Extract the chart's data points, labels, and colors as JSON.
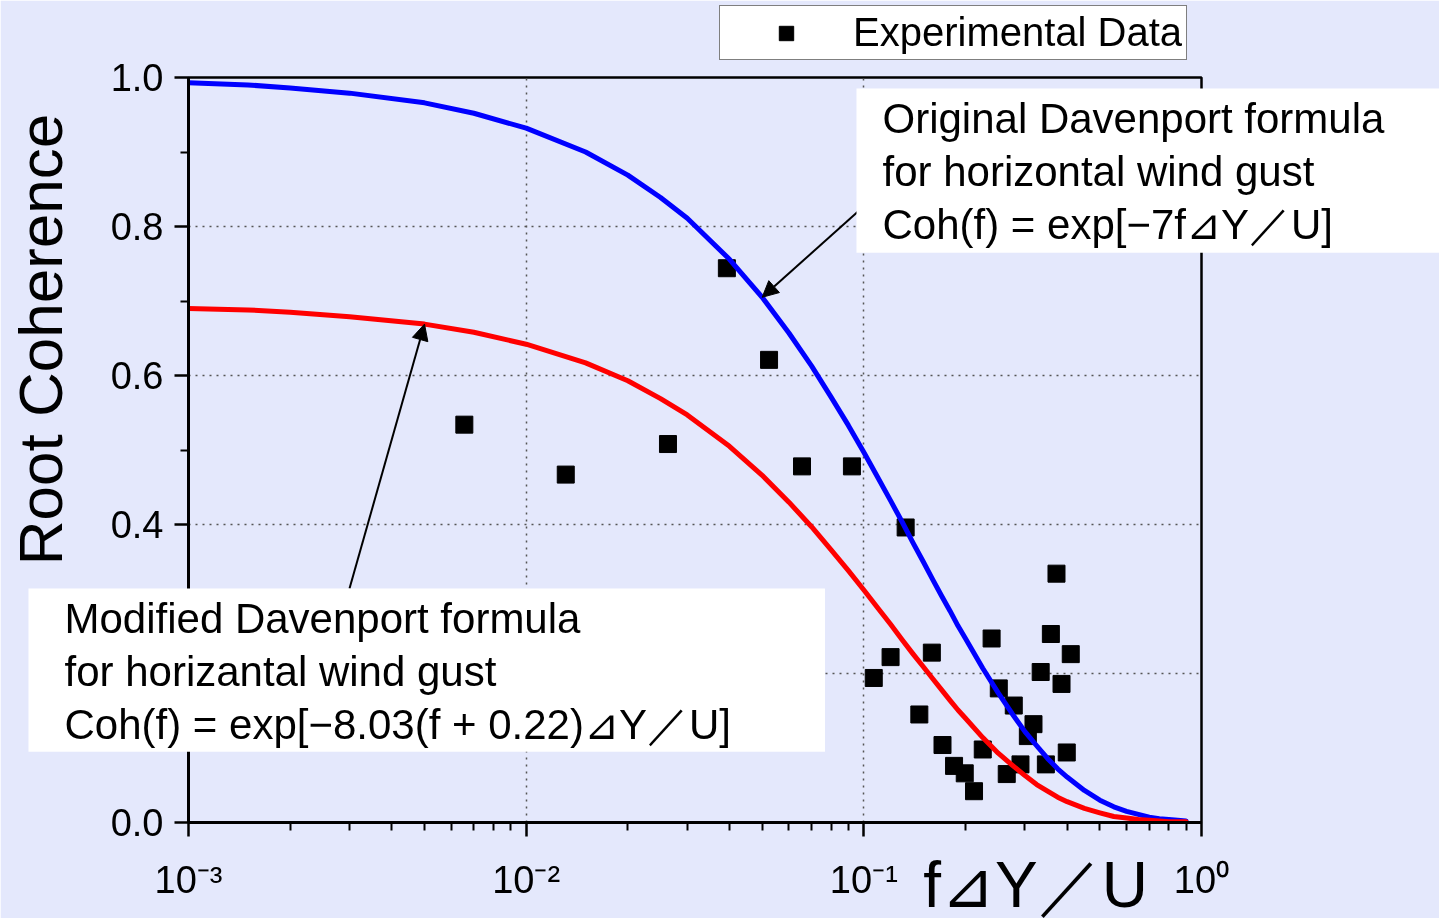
{
  "chart_data": {
    "type": "scatter",
    "xlabel": "f⊿Y／U",
    "ylabel": "Root Coherence",
    "log": "x",
    "grid": true,
    "legend": "top right",
    "xlim": [
      0.001,
      1
    ],
    "ylim": [
      0,
      1
    ],
    "xticks": [
      {
        "value": 0.001,
        "label": "10⁻³"
      },
      {
        "value": 0.01,
        "label": "10⁻²"
      },
      {
        "value": 0.1,
        "label": "10⁻¹"
      },
      {
        "value": 1,
        "label": "10⁰"
      }
    ],
    "yticks": [
      {
        "value": 0,
        "label": "0.0"
      },
      {
        "value": 0.2,
        "label": null
      },
      0.4,
      0.6,
      0.8,
      {
        "value": 1,
        "label": "1.0"
      }
    ],
    "series": [
      {
        "name": "Experimental Data",
        "marker": "square",
        "color": "#000000",
        "x": [
          0.00656,
          0.0131,
          0.0263,
          0.0393,
          0.0524,
          0.0656,
          0.0922,
          0.107,
          0.12,
          0.133,
          0.146,
          0.159,
          0.171,
          0.185,
          0.199,
          0.212,
          0.225,
          0.239,
          0.251,
          0.265,
          0.278,
          0.291,
          0.306,
          0.318,
          0.334,
          0.346,
          0.358,
          0.372,
          0.385,
          0.399,
          0.41
        ],
        "values": [
          0.534,
          0.467,
          0.508,
          0.744,
          0.621,
          0.478,
          0.478,
          0.194,
          0.222,
          0.396,
          0.145,
          0.228,
          0.104,
          0.076,
          0.066,
          0.042,
          0.098,
          0.247,
          0.18,
          0.065,
          0.157,
          0.078,
          0.116,
          0.132,
          0.202,
          0.078,
          0.253,
          0.334,
          0.186,
          0.094,
          0.226
        ]
      },
      {
        "type": "line",
        "line_style": "solid",
        "color": "#0000ff",
        "x": [
          0.001,
          0.0015,
          0.002,
          0.003,
          0.005,
          0.007,
          0.01,
          0.015,
          0.02,
          0.025,
          0.03,
          0.04,
          0.05,
          0.06,
          0.07,
          0.08,
          0.09,
          0.1,
          0.11,
          0.12,
          0.13,
          0.14,
          0.15,
          0.16,
          0.17,
          0.18,
          0.19,
          0.2,
          0.225,
          0.25,
          0.275,
          0.3,
          0.325,
          0.35,
          0.375,
          0.4,
          0.45,
          0.5,
          0.55,
          0.6,
          0.65,
          0.7,
          0.75,
          0.8,
          0.85,
          0.9
        ],
        "values": [
          0.993,
          0.99,
          0.986,
          0.979,
          0.966,
          0.952,
          0.932,
          0.9,
          0.869,
          0.839,
          0.811,
          0.756,
          0.705,
          0.657,
          0.613,
          0.571,
          0.533,
          0.497,
          0.463,
          0.432,
          0.403,
          0.375,
          0.35,
          0.326,
          0.304,
          0.284,
          0.264,
          0.247,
          0.207,
          0.174,
          0.146,
          0.122,
          0.103,
          0.086,
          0.072,
          0.061,
          0.043,
          0.03,
          0.021,
          0.015,
          0.011,
          0.007,
          0.005,
          0.004,
          0.003,
          0.002
        ]
      },
      {
        "type": "line",
        "line_style": "solid",
        "color": "#ff0000",
        "x": [
          0.001,
          0.0015,
          0.002,
          0.003,
          0.005,
          0.007,
          0.01,
          0.015,
          0.02,
          0.025,
          0.03,
          0.04,
          0.05,
          0.06,
          0.07,
          0.08,
          0.09,
          0.1,
          0.11,
          0.12,
          0.13,
          0.14,
          0.15,
          0.16,
          0.17,
          0.18,
          0.19,
          0.2,
          0.225,
          0.25,
          0.275,
          0.3,
          0.325,
          0.35,
          0.375,
          0.4,
          0.45,
          0.5,
          0.55,
          0.6,
          0.65,
          0.7,
          0.75,
          0.8,
          0.85,
          0.9
        ],
        "values": [
          0.69,
          0.688,
          0.685,
          0.679,
          0.669,
          0.658,
          0.642,
          0.617,
          0.593,
          0.569,
          0.547,
          0.505,
          0.466,
          0.43,
          0.397,
          0.366,
          0.338,
          0.312,
          0.288,
          0.266,
          0.245,
          0.226,
          0.209,
          0.193,
          0.178,
          0.164,
          0.151,
          0.14,
          0.114,
          0.093,
          0.077,
          0.063,
          0.051,
          0.042,
          0.034,
          0.028,
          0.019,
          0.013,
          0.008,
          0.006,
          0.004,
          0.003,
          0.002,
          0.001,
          0.001,
          0.001
        ]
      }
    ],
    "annotations": [
      {
        "text": "Original Davenport formula\nfor horizontal wind gust\nCoh(f) = exp[−7f⊿Y／U]",
        "x": 0.05,
        "y": 0.705
      },
      {
        "text": "Modified Davenport formula\nfor horizantal wind gust\nCoh(f) = exp[−8.03(f + 0.22)⊿Y／U]",
        "x": 0.005,
        "y": 0.669
      }
    ]
  }
}
